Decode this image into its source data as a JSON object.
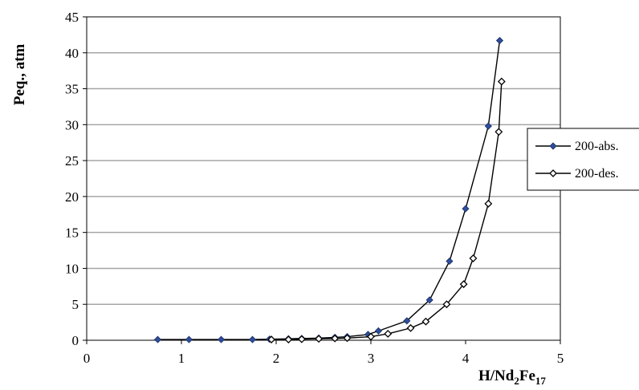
{
  "chart_data": {
    "type": "scatter",
    "xlabel": {
      "main": "H/Nd",
      "sub1": "2",
      "mid": "Fe",
      "sub2": "17"
    },
    "ylabel": "Peq., atm",
    "xlim": [
      0,
      5
    ],
    "ylim": [
      0,
      45
    ],
    "xticks": [
      "0",
      "1",
      "2",
      "3",
      "4",
      "5"
    ],
    "yticks": [
      "0",
      "5",
      "10",
      "15",
      "20",
      "25",
      "30",
      "35",
      "40",
      "45"
    ],
    "grid": "horizontal",
    "legend_position": "right",
    "series": [
      {
        "name": "200-abs.",
        "marker": "filled-diamond",
        "color": "#2e4d9a",
        "x": [
          0.75,
          1.08,
          1.42,
          1.75,
          1.93,
          2.13,
          2.27,
          2.45,
          2.62,
          2.75,
          2.97,
          3.08,
          3.38,
          3.62,
          3.83,
          4.0,
          4.24,
          4.36
        ],
        "y": [
          0.1,
          0.1,
          0.1,
          0.1,
          0.15,
          0.2,
          0.25,
          0.3,
          0.4,
          0.5,
          0.8,
          1.3,
          2.7,
          5.6,
          11.0,
          18.3,
          29.8,
          41.7
        ]
      },
      {
        "name": "200-des.",
        "marker": "open-diamond",
        "color": "#000000",
        "x": [
          1.95,
          2.13,
          2.27,
          2.45,
          2.62,
          2.75,
          3.0,
          3.18,
          3.42,
          3.58,
          3.8,
          3.98,
          4.08,
          4.24,
          4.35,
          4.38
        ],
        "y": [
          0.1,
          0.1,
          0.15,
          0.2,
          0.25,
          0.3,
          0.5,
          0.9,
          1.7,
          2.6,
          5.0,
          7.8,
          11.4,
          19.0,
          29.0,
          36.0
        ]
      }
    ]
  }
}
